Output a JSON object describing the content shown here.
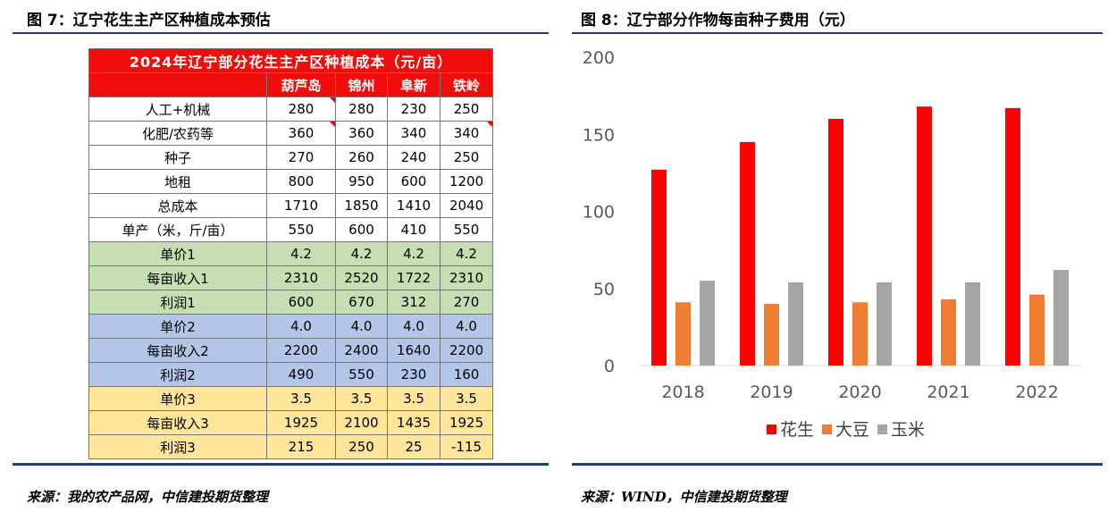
{
  "left_figure": {
    "title": "图 7：辽宁花生主产区种植成本预估",
    "source": "来源：我的农产品网，中信建投期货整理"
  },
  "right_figure": {
    "title": "图 8：辽宁部分作物每亩种子费用（元）",
    "source": "来源：WIND，中信建投期货整理"
  },
  "chart_data": [
    {
      "type": "table",
      "title": "2024年辽宁部分花生主产区种植成本（元/亩）",
      "columns": [
        "葫芦岛",
        "锦州",
        "阜新",
        "铁岭"
      ],
      "rows": [
        {
          "label": "人工+机械",
          "values": [
            "280",
            "280",
            "230",
            "250"
          ],
          "group": "white"
        },
        {
          "label": "化肥/农药等",
          "values": [
            "360",
            "360",
            "340",
            "340"
          ],
          "group": "white"
        },
        {
          "label": "种子",
          "values": [
            "270",
            "260",
            "240",
            "250"
          ],
          "group": "white"
        },
        {
          "label": "地租",
          "values": [
            "800",
            "950",
            "600",
            "1200"
          ],
          "group": "white"
        },
        {
          "label": "总成本",
          "values": [
            "1710",
            "1850",
            "1410",
            "2040"
          ],
          "group": "white"
        },
        {
          "label": "单产（米，斤/亩）",
          "values": [
            "550",
            "600",
            "410",
            "550"
          ],
          "group": "white"
        },
        {
          "label": "单价1",
          "values": [
            "4.2",
            "4.2",
            "4.2",
            "4.2"
          ],
          "group": "green"
        },
        {
          "label": "每亩收入1",
          "values": [
            "2310",
            "2520",
            "1722",
            "2310"
          ],
          "group": "green"
        },
        {
          "label": "利润1",
          "values": [
            "600",
            "670",
            "312",
            "270"
          ],
          "group": "green"
        },
        {
          "label": "单价2",
          "values": [
            "4.0",
            "4.0",
            "4.0",
            "4.0"
          ],
          "group": "blue"
        },
        {
          "label": "每亩收入2",
          "values": [
            "2200",
            "2400",
            "1640",
            "2200"
          ],
          "group": "blue"
        },
        {
          "label": "利润2",
          "values": [
            "490",
            "550",
            "230",
            "160"
          ],
          "group": "blue"
        },
        {
          "label": "单价3",
          "values": [
            "3.5",
            "3.5",
            "3.5",
            "3.5"
          ],
          "group": "yellow"
        },
        {
          "label": "每亩收入3",
          "values": [
            "1925",
            "2100",
            "1435",
            "1925"
          ],
          "group": "yellow"
        },
        {
          "label": "利润3",
          "values": [
            "215",
            "250",
            "25",
            "-115"
          ],
          "group": "yellow"
        }
      ]
    },
    {
      "type": "bar",
      "categories": [
        "2018",
        "2019",
        "2020",
        "2021",
        "2022"
      ],
      "series": [
        {
          "name": "花生",
          "color": "#ff0000",
          "values": [
            127,
            145,
            160,
            168,
            167
          ]
        },
        {
          "name": "大豆",
          "color": "#ed7d31",
          "values": [
            41,
            40,
            41,
            43,
            46
          ]
        },
        {
          "name": "玉米",
          "color": "#a5a5a5",
          "values": [
            55,
            54,
            54,
            54,
            62
          ]
        }
      ],
      "yticks": [
        "0",
        "50",
        "100",
        "150",
        "200"
      ],
      "ylim": [
        0,
        200
      ],
      "legend": "bottom"
    }
  ]
}
